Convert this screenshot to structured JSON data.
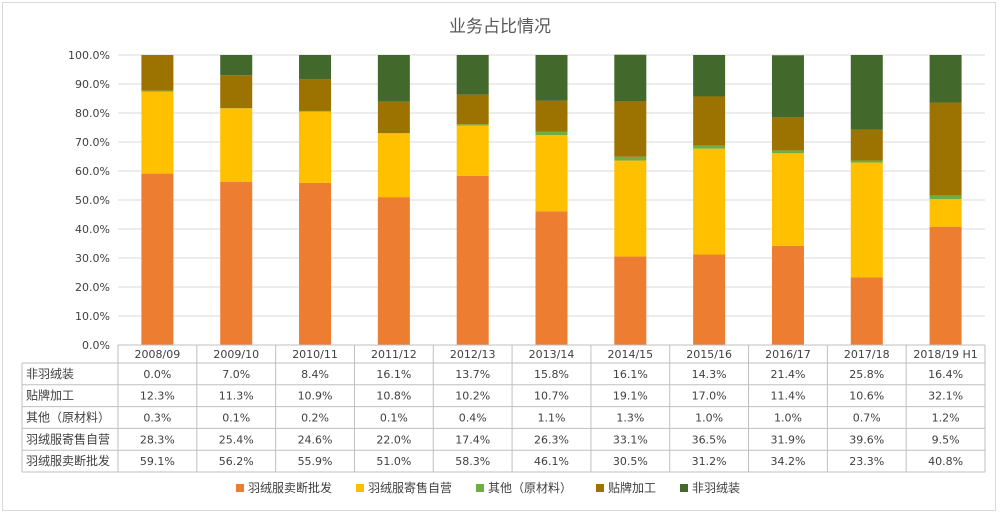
{
  "chart_data": {
    "type": "bar",
    "stacked": true,
    "percent": true,
    "title": "业务占比情况",
    "xlabel": "",
    "ylabel": "",
    "ylim": [
      0,
      100
    ],
    "y_ticks": [
      "0.0%",
      "10.0%",
      "20.0%",
      "30.0%",
      "40.0%",
      "50.0%",
      "60.0%",
      "70.0%",
      "80.0%",
      "90.0%",
      "100.0%"
    ],
    "grid": true,
    "legend": "bottom",
    "categories": [
      "2008/09",
      "2009/10",
      "2010/11",
      "2011/12",
      "2012/13",
      "2013/14",
      "2014/15",
      "2015/16",
      "2016/17",
      "2017/18",
      "2018/19 H1"
    ],
    "series": [
      {
        "name": "羽绒服卖断批发",
        "color": "#ed7d31",
        "values": [
          59.1,
          56.2,
          55.9,
          51.0,
          58.3,
          46.1,
          30.5,
          31.2,
          34.2,
          23.3,
          40.8
        ],
        "labels": [
          "59.1%",
          "56.2%",
          "55.9%",
          "51.0%",
          "58.3%",
          "46.1%",
          "30.5%",
          "31.2%",
          "34.2%",
          "23.3%",
          "40.8%"
        ]
      },
      {
        "name": "羽绒服寄售自营",
        "color": "#ffc000",
        "values": [
          28.3,
          25.4,
          24.6,
          22.0,
          17.4,
          26.3,
          33.1,
          36.5,
          31.9,
          39.6,
          9.5
        ],
        "labels": [
          "28.3%",
          "25.4%",
          "24.6%",
          "22.0%",
          "17.4%",
          "26.3%",
          "33.1%",
          "36.5%",
          "31.9%",
          "39.6%",
          "9.5%"
        ]
      },
      {
        "name": "其他（原材料）",
        "color": "#70ad47",
        "values": [
          0.3,
          0.1,
          0.2,
          0.1,
          0.4,
          1.1,
          1.3,
          1.0,
          1.0,
          0.7,
          1.2
        ],
        "labels": [
          "0.3%",
          "0.1%",
          "0.2%",
          "0.1%",
          "0.4%",
          "1.1%",
          "1.3%",
          "1.0%",
          "1.0%",
          "0.7%",
          "1.2%"
        ]
      },
      {
        "name": "贴牌加工",
        "color": "#9c7300",
        "values": [
          12.3,
          11.3,
          10.9,
          10.8,
          10.2,
          10.7,
          19.1,
          17.0,
          11.4,
          10.6,
          32.1
        ],
        "labels": [
          "12.3%",
          "11.3%",
          "10.9%",
          "10.8%",
          "10.2%",
          "10.7%",
          "19.1%",
          "17.0%",
          "11.4%",
          "10.6%",
          "32.1%"
        ]
      },
      {
        "name": "非羽绒装",
        "color": "#43682b",
        "values": [
          0.0,
          7.0,
          8.4,
          16.1,
          13.7,
          15.8,
          16.1,
          14.3,
          21.4,
          25.8,
          16.4
        ],
        "labels": [
          "0.0%",
          "7.0%",
          "8.4%",
          "16.1%",
          "13.7%",
          "15.8%",
          "16.1%",
          "14.3%",
          "21.4%",
          "25.8%",
          "16.4%"
        ]
      }
    ],
    "table_row_order": [
      "非羽绒装",
      "贴牌加工",
      "其他（原材料）",
      "羽绒服寄售自营",
      "羽绒服卖断批发"
    ]
  }
}
